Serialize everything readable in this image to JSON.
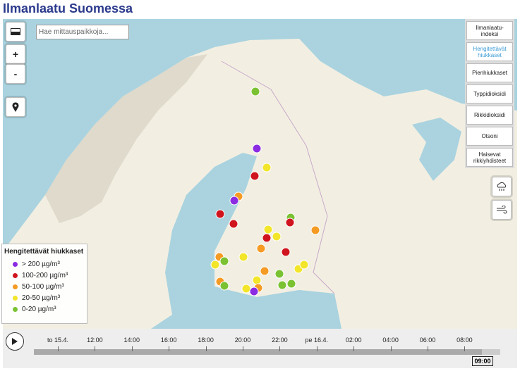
{
  "header": {
    "title": "Ilmanlaatu Suomessa"
  },
  "search": {
    "placeholder": "Hae mittauspaikkoja..."
  },
  "zoom": {
    "in": "+",
    "out": "-"
  },
  "pollutants": [
    "Ilmanlaatu-indeksi",
    "Hengitettävät hiukkaset",
    "Pienhiukkaset",
    "Typpidioksidi",
    "Rikkidioksidi",
    "Otsoni",
    "Haisevat rikkiyhdisteet"
  ],
  "legend": {
    "title": "Hengitettävät hiukkaset",
    "items": [
      "> 200 µg/m³",
      "100-200 µg/m³",
      "50-100 µg/m³",
      "20-50 µg/m³",
      "0-20 µg/m³"
    ]
  },
  "timeline": {
    "labels": [
      "to 15.4.",
      "12:00",
      "14:00",
      "16:00",
      "18:00",
      "20:00",
      "22:00",
      "pe 16.4.",
      "02:00",
      "04:00",
      "06:00",
      "08:00"
    ],
    "current": "09:00"
  }
}
